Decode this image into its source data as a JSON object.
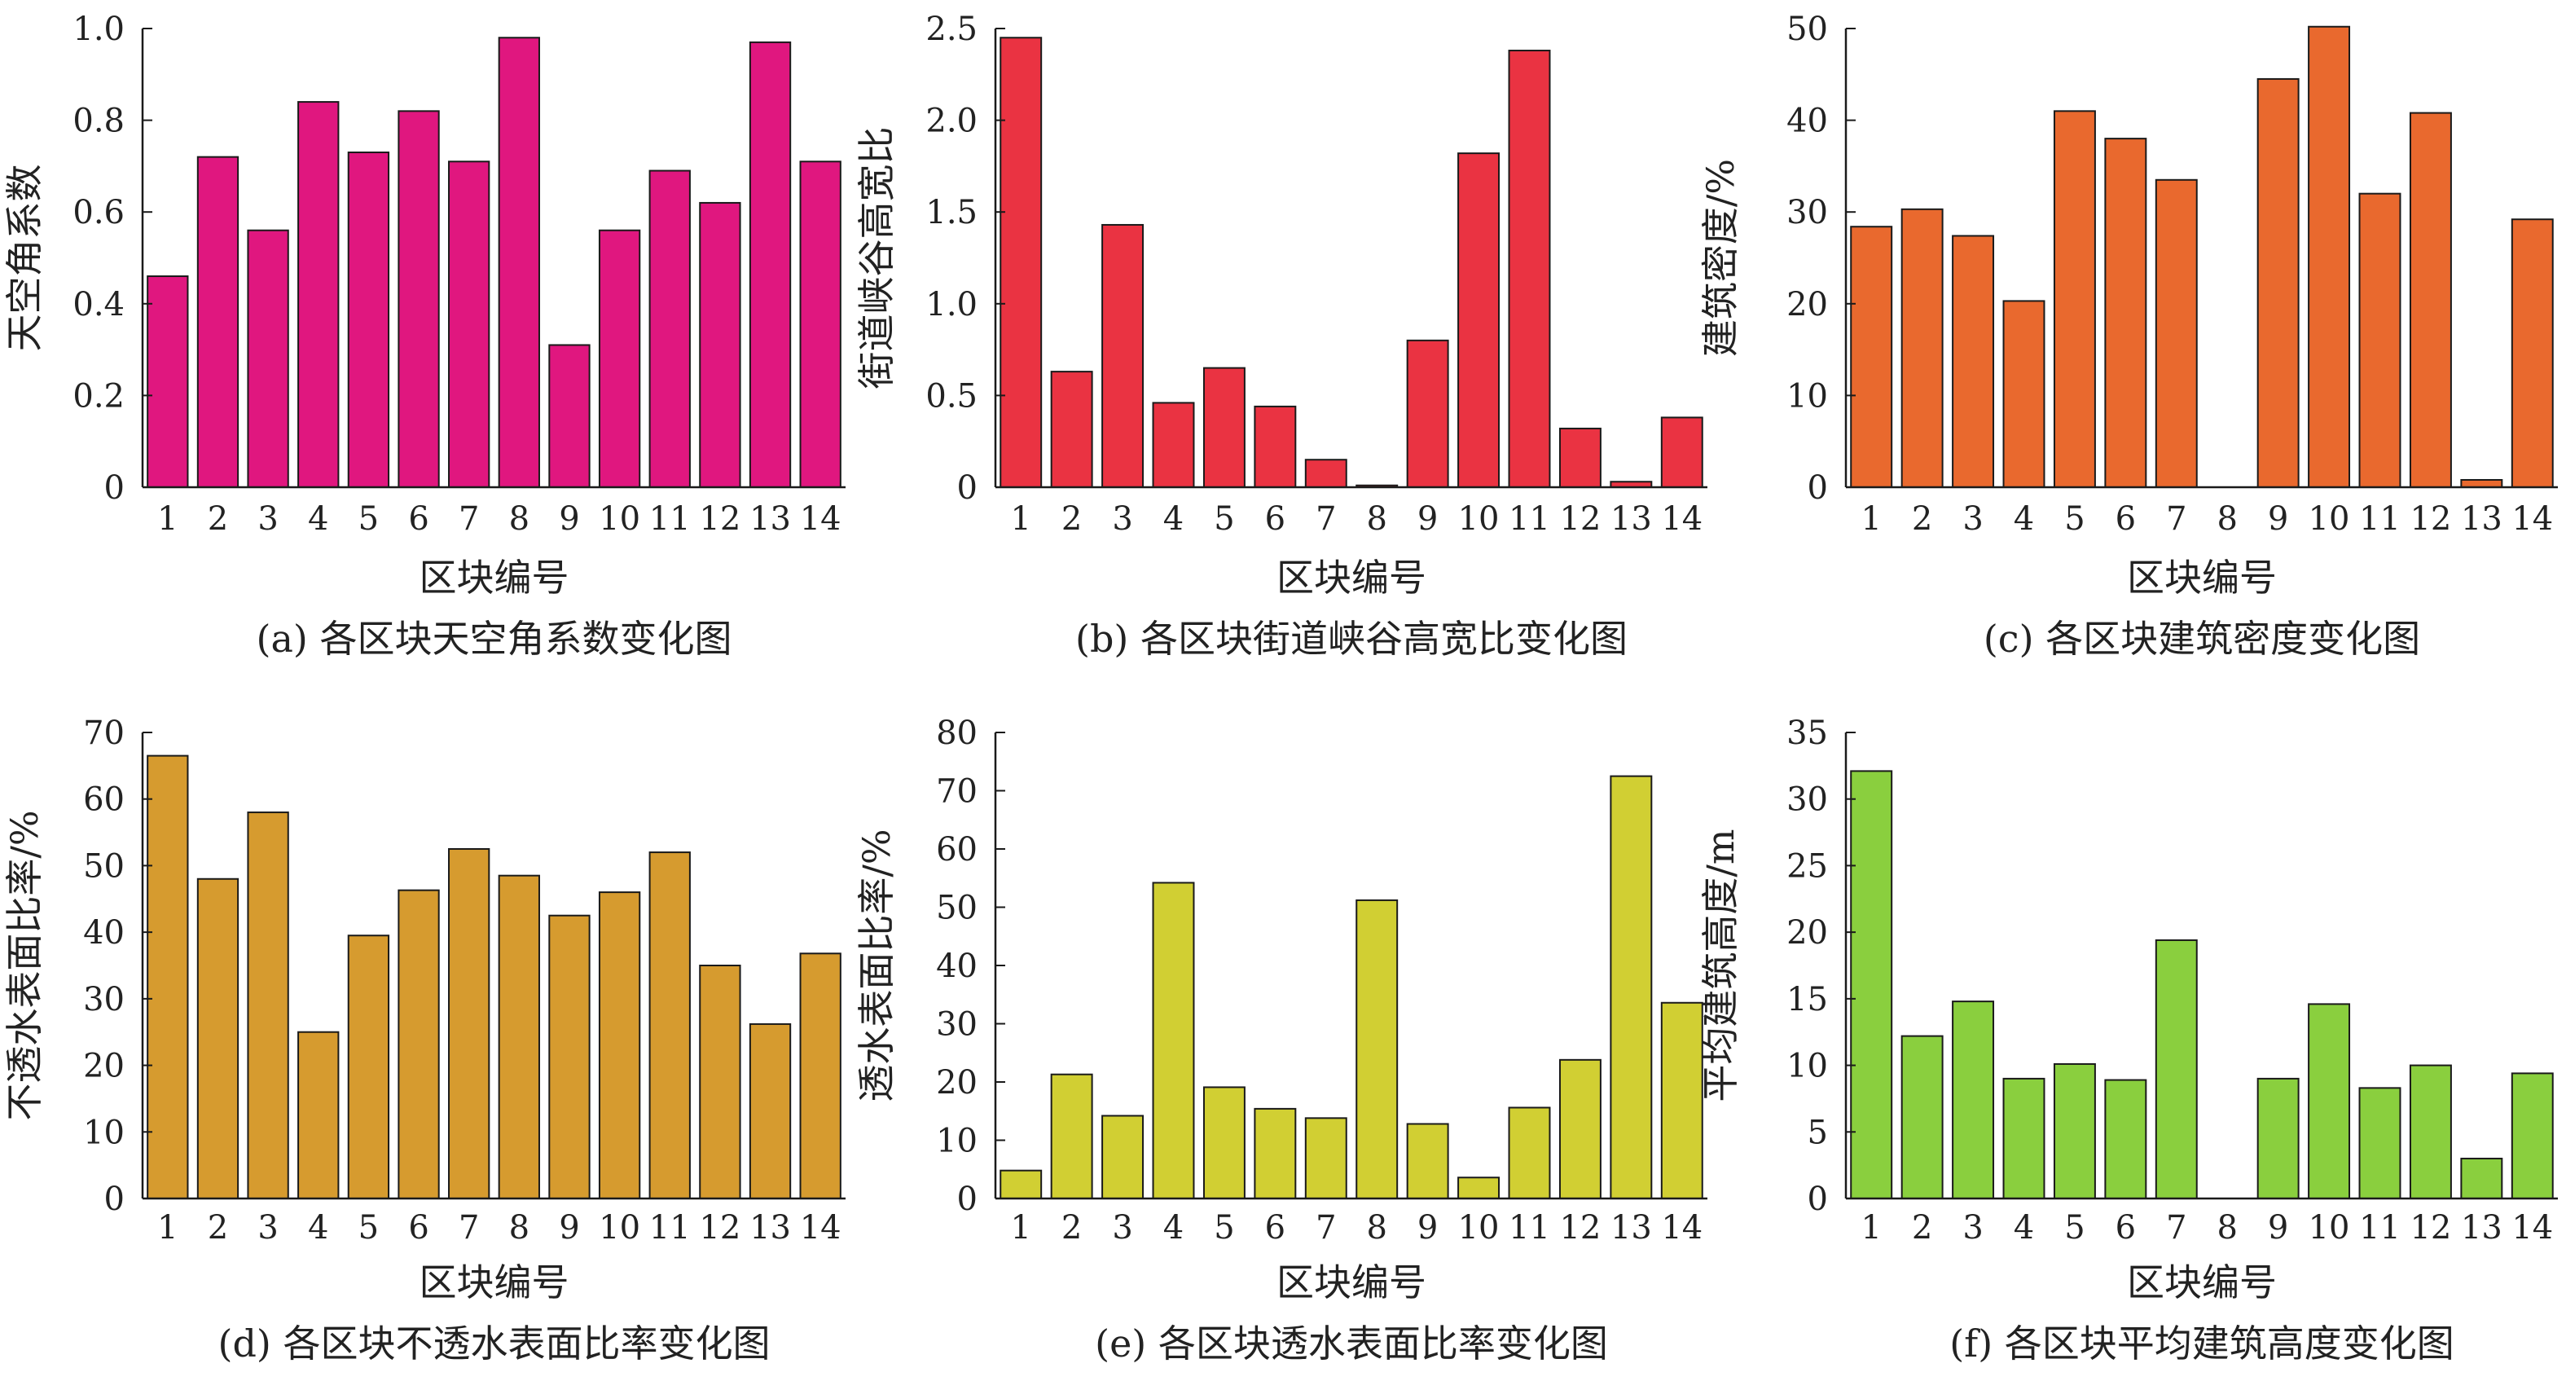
{
  "chart_data": [
    {
      "type": "bar",
      "id": "a",
      "color": "#E0177F",
      "title": "(a) 各区块天空角系数变化图",
      "xlabel": "区块编号",
      "ylabel": "天空角系数",
      "ylim": [
        0,
        1.0
      ],
      "yticks": [
        "0",
        "0.2",
        "0.4",
        "0.6",
        "0.8",
        "1.0"
      ],
      "categories": [
        "1",
        "2",
        "3",
        "4",
        "5",
        "6",
        "7",
        "8",
        "9",
        "10",
        "11",
        "12",
        "13",
        "14"
      ],
      "values": [
        0.46,
        0.72,
        0.56,
        0.84,
        0.73,
        0.82,
        0.71,
        0.98,
        0.31,
        0.56,
        0.69,
        0.62,
        0.97,
        0.71
      ]
    },
    {
      "type": "bar",
      "id": "b",
      "color": "#EA3342",
      "title": "(b) 各区块街道峡谷高宽比变化图",
      "xlabel": "区块编号",
      "ylabel": "街道峡谷高宽比",
      "ylim": [
        0,
        2.5
      ],
      "yticks": [
        "0",
        "0.5",
        "1.0",
        "1.5",
        "2.0",
        "2.5"
      ],
      "categories": [
        "1",
        "2",
        "3",
        "4",
        "5",
        "6",
        "7",
        "8",
        "9",
        "10",
        "11",
        "12",
        "13",
        "14"
      ],
      "values": [
        2.45,
        0.63,
        1.43,
        0.46,
        0.65,
        0.44,
        0.15,
        0.01,
        0.8,
        1.82,
        2.38,
        0.32,
        0.03,
        0.38
      ]
    },
    {
      "type": "bar",
      "id": "c",
      "color": "#E9692E",
      "title": "(c) 各区块建筑密度变化图",
      "xlabel": "区块编号",
      "ylabel": "建筑密度/%",
      "ylim": [
        0,
        50
      ],
      "yticks": [
        "0",
        "10",
        "20",
        "30",
        "40",
        "50"
      ],
      "categories": [
        "1",
        "2",
        "3",
        "4",
        "5",
        "6",
        "7",
        "8",
        "9",
        "10",
        "11",
        "12",
        "13",
        "14"
      ],
      "values": [
        28.4,
        30.3,
        27.4,
        20.3,
        41.0,
        38.0,
        33.5,
        0,
        44.5,
        50.2,
        32.0,
        40.8,
        0.8,
        29.2
      ]
    },
    {
      "type": "bar",
      "id": "d",
      "color": "#D69B2F",
      "title": "(d) 各区块不透水表面比率变化图",
      "xlabel": "区块编号",
      "ylabel": "不透水表面比率/%",
      "ylim": [
        0,
        70
      ],
      "yticks": [
        "0",
        "10",
        "20",
        "30",
        "40",
        "50",
        "60",
        "70"
      ],
      "categories": [
        "1",
        "2",
        "3",
        "4",
        "5",
        "6",
        "7",
        "8",
        "9",
        "10",
        "11",
        "12",
        "13",
        "14"
      ],
      "values": [
        66.5,
        48.0,
        58.0,
        25.0,
        39.5,
        46.3,
        52.5,
        48.5,
        42.5,
        46.0,
        52.0,
        35.0,
        26.2,
        36.8
      ]
    },
    {
      "type": "bar",
      "id": "e",
      "color": "#D1CF33",
      "title": "(e) 各区块透水表面比率变化图",
      "xlabel": "区块编号",
      "ylabel": "透水表面比率/%",
      "ylim": [
        0,
        80
      ],
      "yticks": [
        "0",
        "10",
        "20",
        "30",
        "40",
        "50",
        "60",
        "70",
        "80"
      ],
      "categories": [
        "1",
        "2",
        "3",
        "4",
        "5",
        "6",
        "7",
        "8",
        "9",
        "10",
        "11",
        "12",
        "13",
        "14"
      ],
      "values": [
        4.8,
        21.3,
        14.2,
        54.2,
        19.1,
        15.4,
        13.8,
        51.2,
        12.8,
        3.6,
        15.6,
        23.8,
        72.5,
        33.6
      ]
    },
    {
      "type": "bar",
      "id": "f",
      "color": "#8ACF3E",
      "title": "(f) 各区块平均建筑高度变化图",
      "xlabel": "区块编号",
      "ylabel": "平均建筑高度/m",
      "ylim": [
        0,
        35
      ],
      "yticks": [
        "0",
        "5",
        "10",
        "15",
        "20",
        "25",
        "30",
        "35"
      ],
      "categories": [
        "1",
        "2",
        "3",
        "4",
        "5",
        "6",
        "7",
        "8",
        "9",
        "10",
        "11",
        "12",
        "13",
        "14"
      ],
      "values": [
        32.1,
        12.2,
        14.8,
        9.0,
        10.1,
        8.9,
        19.4,
        0,
        9.0,
        14.6,
        8.3,
        10.0,
        3.0,
        9.4
      ]
    }
  ]
}
